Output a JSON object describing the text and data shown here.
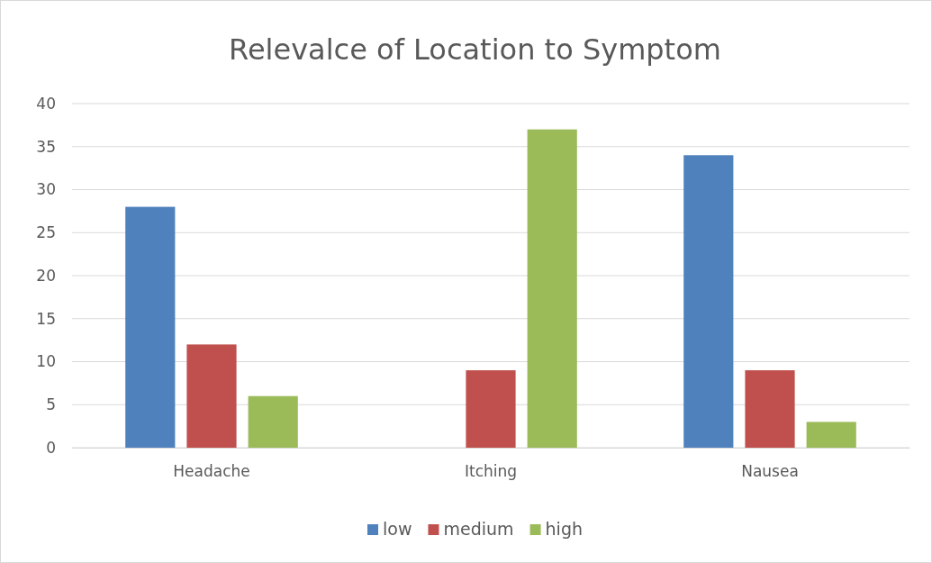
{
  "chart_data": {
    "type": "bar",
    "title": "Relevalce of Location to Symptom",
    "categories": [
      "Headache",
      "Itching",
      "Nausea"
    ],
    "series": [
      {
        "name": "low",
        "color": "#4f81bd",
        "values": [
          28,
          0,
          34
        ]
      },
      {
        "name": "medium",
        "color": "#c0504d",
        "values": [
          12,
          9,
          9
        ]
      },
      {
        "name": "high",
        "color": "#9bbb59",
        "values": [
          6,
          37,
          3
        ]
      }
    ],
    "ylim": [
      0,
      40
    ],
    "yticks": [
      0,
      5,
      10,
      15,
      20,
      25,
      30,
      35,
      40
    ],
    "grid": "y",
    "legend": "bottom"
  }
}
